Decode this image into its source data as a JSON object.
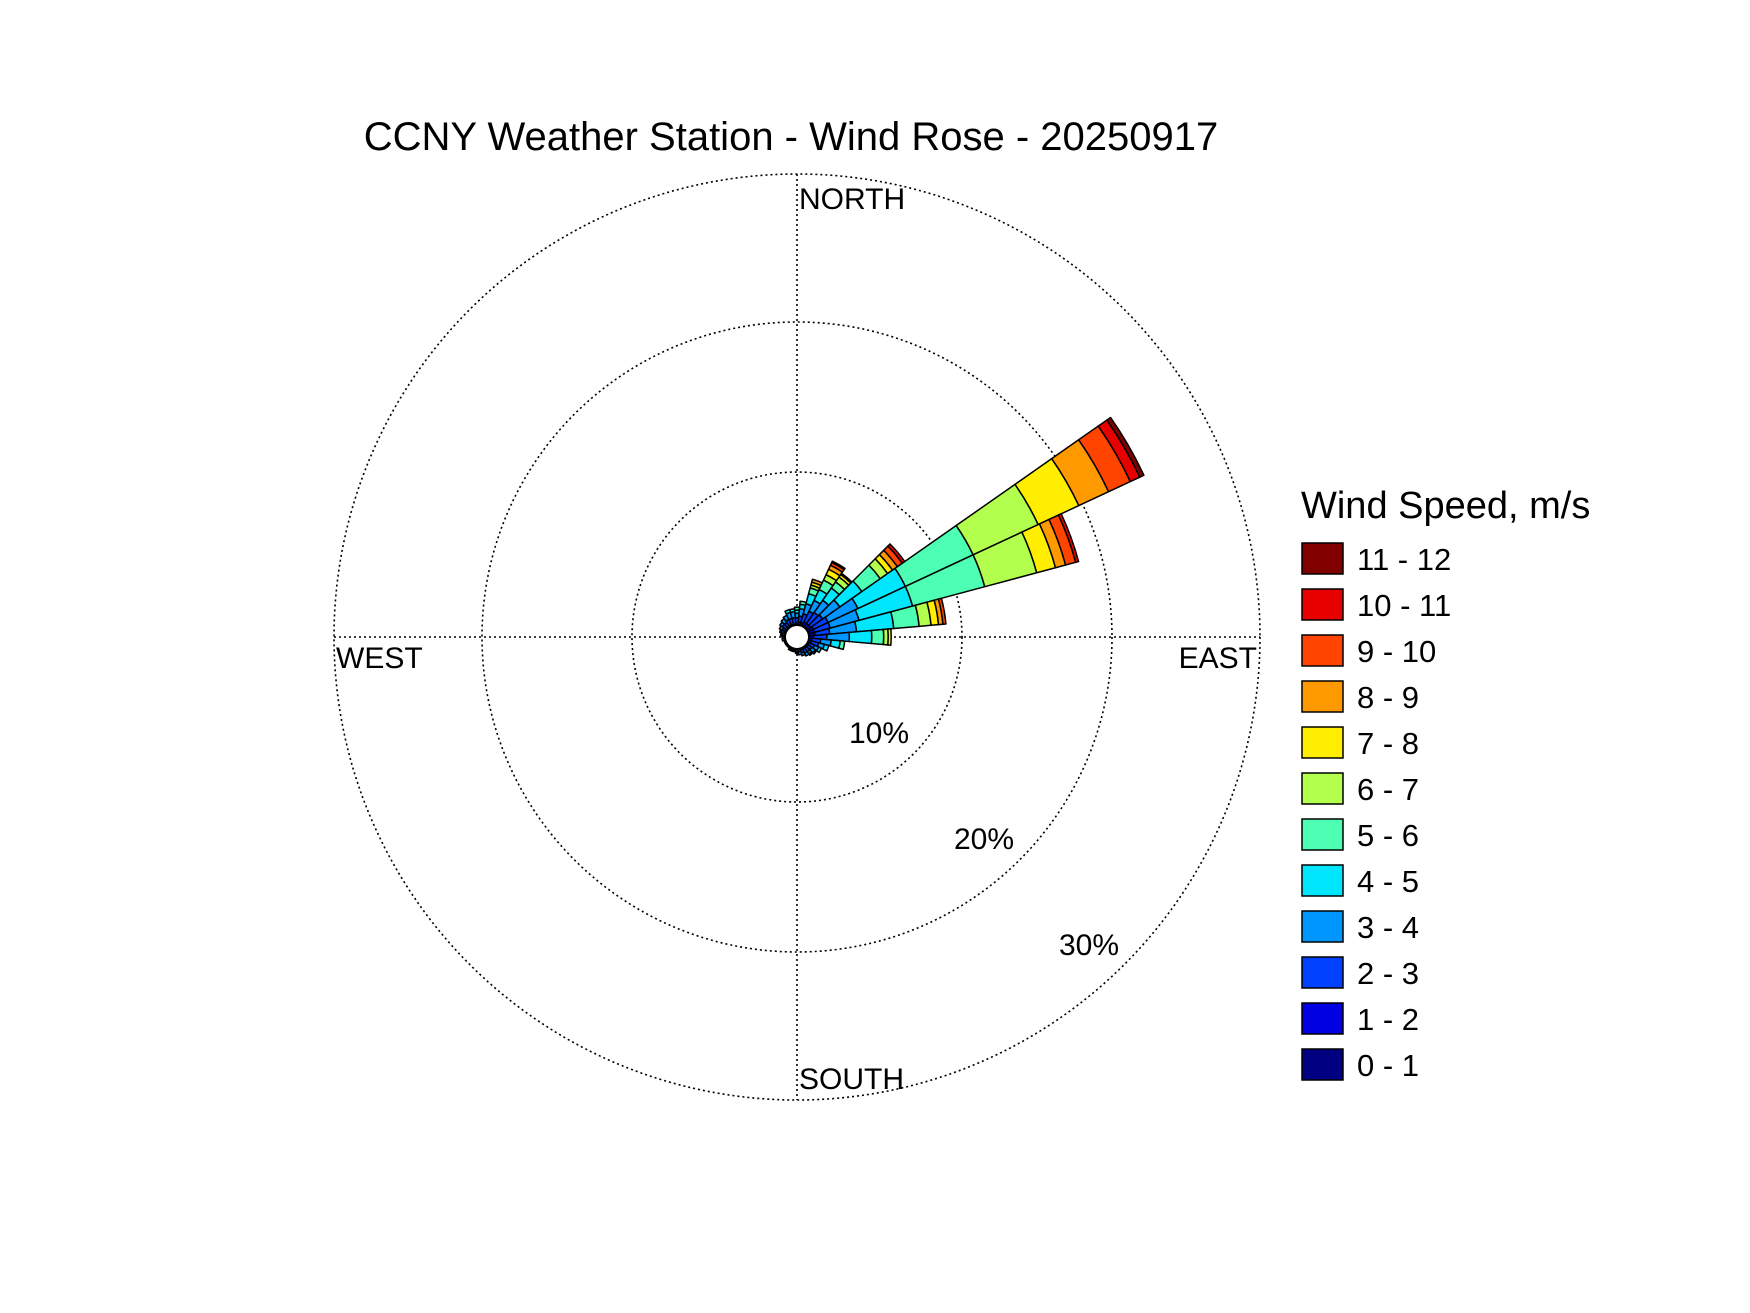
{
  "chart_data": {
    "type": "wind-rose",
    "title": "CCNY Weather Station - Wind Rose - 20250917",
    "directions": {
      "north": "NORTH",
      "east": "EAST",
      "south": "SOUTH",
      "west": "WEST"
    },
    "radial_axis": {
      "unit": "%",
      "max": 31,
      "ticks": [
        10,
        20,
        30
      ],
      "tick_labels": [
        "10%",
        "20%",
        "30%"
      ],
      "grid": true
    },
    "legend": {
      "title": "Wind Speed, m/s",
      "placement": "right",
      "bins": [
        {
          "label": "0 - 1",
          "color": "#000080"
        },
        {
          "label": "1 - 2",
          "color": "#0000e0"
        },
        {
          "label": "2 - 3",
          "color": "#0040ff"
        },
        {
          "label": "3 - 4",
          "color": "#0096ff"
        },
        {
          "label": "4 - 5",
          "color": "#00e6ff"
        },
        {
          "label": "5 - 6",
          "color": "#4dffb3"
        },
        {
          "label": "6 - 7",
          "color": "#b3ff4d"
        },
        {
          "label": "7 - 8",
          "color": "#ffee00"
        },
        {
          "label": "8 - 9",
          "color": "#ff9900"
        },
        {
          "label": "9 - 10",
          "color": "#ff4400"
        },
        {
          "label": "10 - 11",
          "color": "#e60000"
        },
        {
          "label": "11 - 12",
          "color": "#800000"
        }
      ]
    },
    "sector_width_deg": 10,
    "series": [
      {
        "direction_deg": 0,
        "cumulative": [
          0.6,
          0.9,
          1.3,
          1.6,
          1.8,
          2.0
        ]
      },
      {
        "direction_deg": 10,
        "cumulative": [
          0.6,
          1.0,
          1.4,
          1.9,
          2.2,
          2.4
        ]
      },
      {
        "direction_deg": 20,
        "cumulative": [
          0.6,
          1.0,
          1.6,
          2.3,
          3.0,
          3.4,
          3.6,
          3.8,
          4.0
        ]
      },
      {
        "direction_deg": 30,
        "cumulative": [
          0.6,
          1.1,
          1.9,
          2.7,
          3.5,
          4.2,
          4.6,
          5.0,
          5.3,
          5.5,
          5.6
        ]
      },
      {
        "direction_deg": 40,
        "cumulative": [
          0.6,
          1.1,
          2.0,
          3.0,
          4.0,
          4.5,
          4.9,
          5.1,
          5.2
        ]
      },
      {
        "direction_deg": 50,
        "cumulative": [
          0.6,
          1.1,
          2.1,
          3.5,
          5.3,
          6.8,
          7.4,
          7.8,
          8.2,
          8.6,
          8.8
        ]
      },
      {
        "direction_deg": 60,
        "cumulative": [
          0.6,
          1.2,
          2.3,
          4.5,
          8.0,
          13.0,
          17.8,
          20.8,
          23.0,
          24.6,
          25.3,
          25.6
        ]
      },
      {
        "direction_deg": 70,
        "cumulative": [
          0.6,
          1.2,
          2.3,
          4.3,
          8.0,
          13.0,
          16.6,
          17.9,
          18.6,
          19.3,
          19.5
        ]
      },
      {
        "direction_deg": 80,
        "cumulative": [
          0.6,
          1.2,
          2.2,
          4.0,
          6.5,
          8.2,
          9.0,
          9.5,
          9.8,
          10.0
        ]
      },
      {
        "direction_deg": 90,
        "cumulative": [
          0.6,
          1.1,
          2.0,
          3.5,
          5.0,
          5.8,
          6.1,
          6.3
        ]
      },
      {
        "direction_deg": 100,
        "cumulative": [
          0.6,
          1.0,
          1.6,
          2.3,
          2.9,
          3.2
        ]
      },
      {
        "direction_deg": 110,
        "cumulative": [
          0.6,
          1.0,
          1.5,
          1.9,
          2.2
        ]
      },
      {
        "direction_deg": 120,
        "cumulative": [
          0.6,
          0.9,
          1.3,
          1.6,
          1.8
        ]
      },
      {
        "direction_deg": 130,
        "cumulative": [
          0.6,
          0.9,
          1.2,
          1.5,
          1.6
        ]
      },
      {
        "direction_deg": 140,
        "cumulative": [
          0.6,
          0.9,
          1.2,
          1.4,
          1.5
        ]
      },
      {
        "direction_deg": 150,
        "cumulative": [
          0.6,
          0.9,
          1.2,
          1.4
        ]
      },
      {
        "direction_deg": 160,
        "cumulative": [
          0.6,
          0.9,
          1.1,
          1.3
        ]
      },
      {
        "direction_deg": 170,
        "cumulative": [
          0.6,
          0.8,
          1.0,
          1.2
        ]
      },
      {
        "direction_deg": 180,
        "cumulative": [
          0.6,
          0.8,
          1.0,
          1.1
        ]
      },
      {
        "direction_deg": 190,
        "cumulative": [
          0.6,
          0.8,
          0.9,
          1.0
        ]
      },
      {
        "direction_deg": 200,
        "cumulative": [
          0.6,
          0.8,
          0.9,
          1.0
        ]
      },
      {
        "direction_deg": 210,
        "cumulative": [
          0.6,
          0.8,
          0.9,
          1.0
        ]
      },
      {
        "direction_deg": 220,
        "cumulative": [
          0.6,
          0.8,
          0.9
        ]
      },
      {
        "direction_deg": 230,
        "cumulative": [
          0.6,
          0.8,
          0.9
        ]
      },
      {
        "direction_deg": 240,
        "cumulative": [
          0.6,
          0.8,
          0.9
        ]
      },
      {
        "direction_deg": 250,
        "cumulative": [
          0.6,
          0.8,
          0.9
        ]
      },
      {
        "direction_deg": 260,
        "cumulative": [
          0.6,
          0.8,
          1.0
        ]
      },
      {
        "direction_deg": 270,
        "cumulative": [
          0.6,
          0.8,
          1.0
        ]
      },
      {
        "direction_deg": 280,
        "cumulative": [
          0.6,
          0.8,
          1.0,
          1.1
        ]
      },
      {
        "direction_deg": 290,
        "cumulative": [
          0.6,
          0.9,
          1.1,
          1.2
        ]
      },
      {
        "direction_deg": 300,
        "cumulative": [
          0.6,
          0.9,
          1.1,
          1.3
        ]
      },
      {
        "direction_deg": 310,
        "cumulative": [
          0.6,
          0.9,
          1.2,
          1.4
        ]
      },
      {
        "direction_deg": 320,
        "cumulative": [
          0.6,
          0.9,
          1.2,
          1.5
        ]
      },
      {
        "direction_deg": 330,
        "cumulative": [
          0.6,
          0.9,
          1.3,
          1.6
        ]
      },
      {
        "direction_deg": 340,
        "cumulative": [
          0.6,
          0.9,
          1.3,
          1.7,
          1.9
        ]
      },
      {
        "direction_deg": 350,
        "cumulative": [
          0.6,
          0.9,
          1.3,
          1.7,
          1.9
        ]
      }
    ]
  }
}
